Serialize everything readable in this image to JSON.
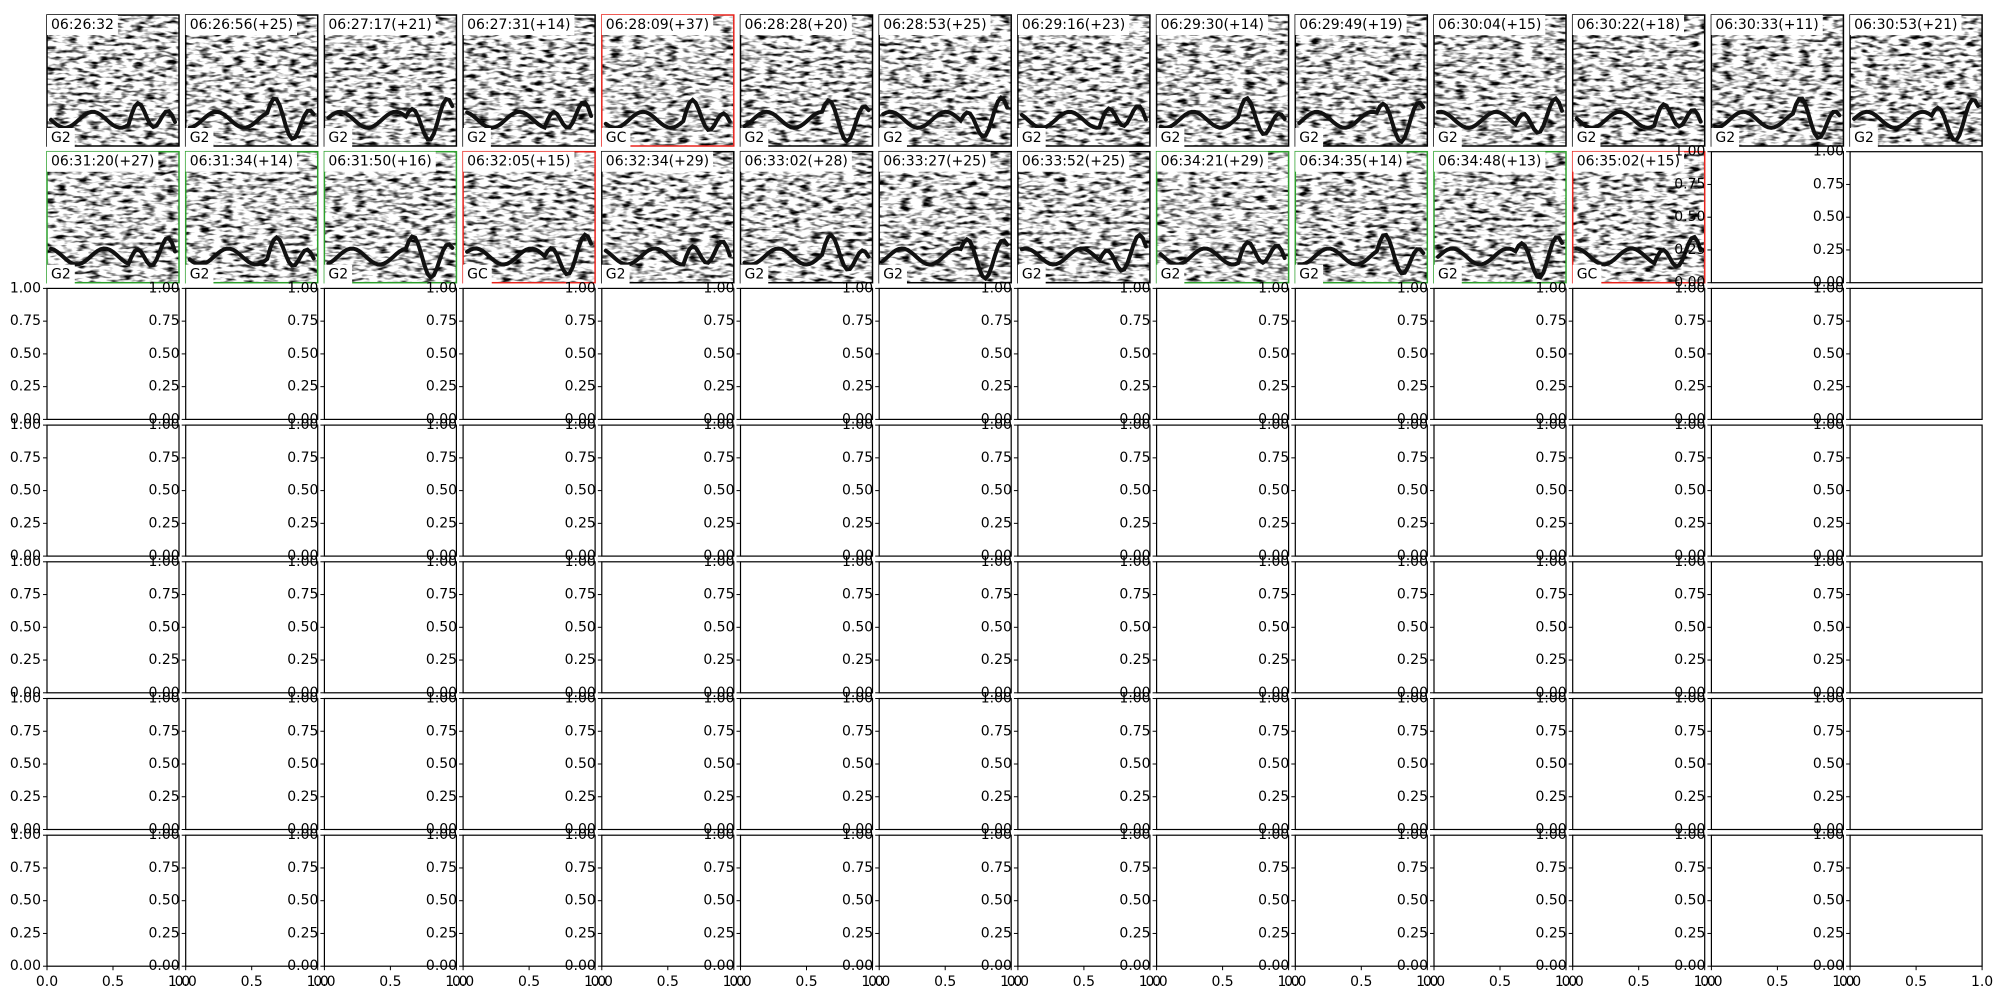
{
  "panels": [
    {
      "time": "06:26:32",
      "label": "G2",
      "border": "#000000"
    },
    {
      "time": "06:26:56(+25)",
      "label": "G2",
      "border": "#000000"
    },
    {
      "time": "06:27:17(+21)",
      "label": "G2",
      "border": "#000000"
    },
    {
      "time": "06:27:31(+14)",
      "label": "G2",
      "border": "#000000"
    },
    {
      "time": "06:28:09(+37)",
      "label": "GC",
      "border": "#e8231c"
    },
    {
      "time": "06:28:28(+20)",
      "label": "G2",
      "border": "#000000"
    },
    {
      "time": "06:28:53(+25)",
      "label": "G2",
      "border": "#000000"
    },
    {
      "time": "06:29:16(+23)",
      "label": "G2",
      "border": "#000000"
    },
    {
      "time": "06:29:30(+14)",
      "label": "G2",
      "border": "#000000"
    },
    {
      "time": "06:29:49(+19)",
      "label": "G2",
      "border": "#000000"
    },
    {
      "time": "06:30:04(+15)",
      "label": "G2",
      "border": "#000000"
    },
    {
      "time": "06:30:22(+18)",
      "label": "G2",
      "border": "#000000"
    },
    {
      "time": "06:30:33(+11)",
      "label": "G2",
      "border": "#000000"
    },
    {
      "time": "06:30:53(+21)",
      "label": "G2",
      "border": "#000000"
    },
    {
      "time": "06:31:20(+27)",
      "label": "G2",
      "border": "#2ca02c"
    },
    {
      "time": "06:31:34(+14)",
      "label": "G2",
      "border": "#2ca02c"
    },
    {
      "time": "06:31:50(+16)",
      "label": "G2",
      "border": "#2ca02c"
    },
    {
      "time": "06:32:05(+15)",
      "label": "GC",
      "border": "#e8231c"
    },
    {
      "time": "06:32:34(+29)",
      "label": "G2",
      "border": "#000000"
    },
    {
      "time": "06:33:02(+28)",
      "label": "G2",
      "border": "#000000"
    },
    {
      "time": "06:33:27(+25)",
      "label": "G2",
      "border": "#000000"
    },
    {
      "time": "06:33:52(+25)",
      "label": "G2",
      "border": "#000000"
    },
    {
      "time": "06:34:21(+29)",
      "label": "G2",
      "border": "#2ca02c"
    },
    {
      "time": "06:34:35(+14)",
      "label": "G2",
      "border": "#2ca02c"
    },
    {
      "time": "06:34:48(+13)",
      "label": "G2",
      "border": "#2ca02c"
    },
    {
      "time": "06:35:02(+15)",
      "label": "GC",
      "border": "#e8231c"
    }
  ],
  "axes": {
    "yticks": [
      {
        "value": 0,
        "label": "0.00"
      },
      {
        "value": 0.25,
        "label": "0.25"
      },
      {
        "value": 0.5,
        "label": "0.50"
      },
      {
        "value": 0.75,
        "label": "0.75"
      },
      {
        "value": 1,
        "label": "1.00"
      }
    ],
    "xticks": [
      {
        "value": 0,
        "label": "0.0"
      },
      {
        "value": 0.5,
        "label": "0.5"
      },
      {
        "value": 1,
        "label": "1.0"
      }
    ]
  }
}
